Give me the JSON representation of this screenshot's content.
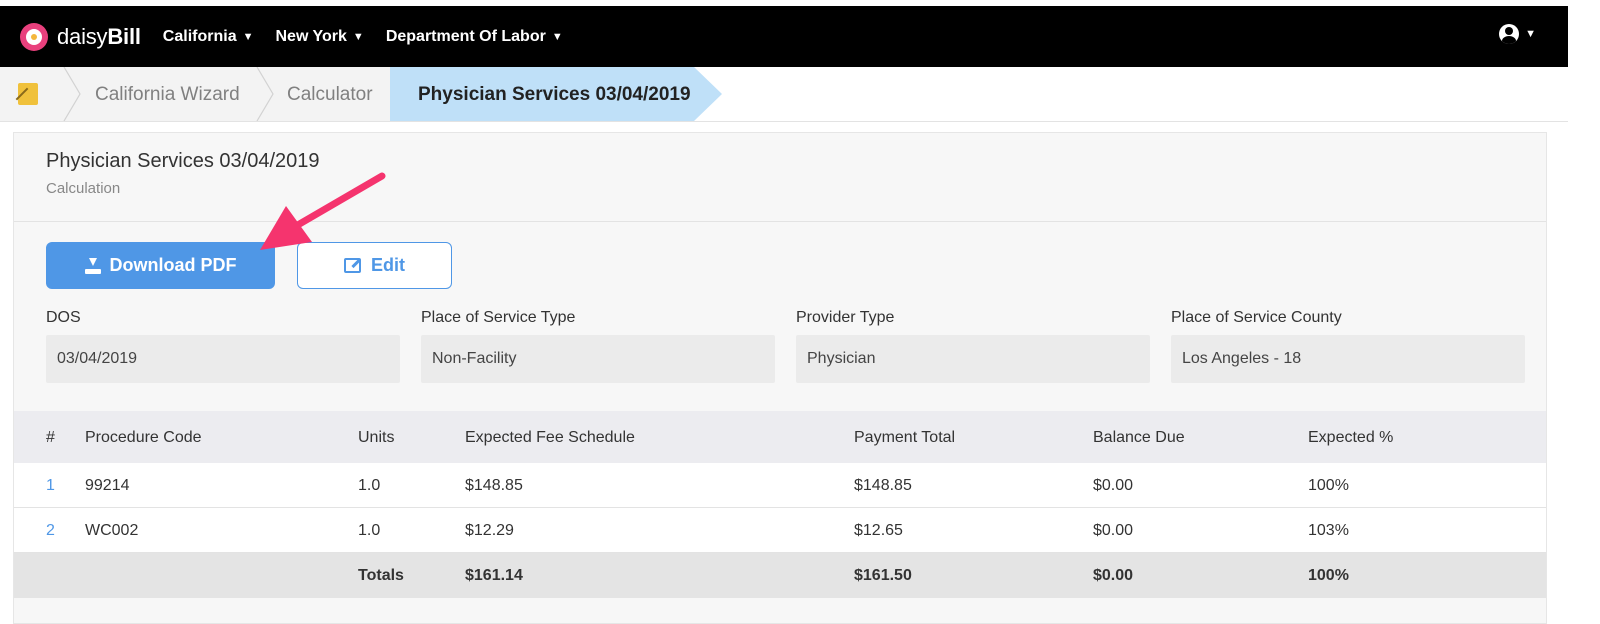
{
  "app": {
    "logo_text_light": "daisy",
    "logo_text_bold": "Bill",
    "brand_color": "#e9407d"
  },
  "nav": {
    "items": [
      {
        "label": "California"
      },
      {
        "label": "New York"
      },
      {
        "label": "Department Of Labor"
      }
    ],
    "user_icon": "user-circle-icon"
  },
  "breadcrumb": {
    "home_icon": "notepad-icon",
    "items": [
      {
        "label": "California Wizard"
      },
      {
        "label": "Calculator"
      },
      {
        "label": "Physician Services 03/04/2019",
        "active": true
      }
    ]
  },
  "card": {
    "title": "Physician Services 03/04/2019",
    "subtitle": "Calculation",
    "buttons": {
      "download_label": "Download PDF",
      "edit_label": "Edit"
    },
    "fields": [
      {
        "label": "DOS",
        "value": "03/04/2019"
      },
      {
        "label": "Place of Service Type",
        "value": "Non-Facility"
      },
      {
        "label": "Provider Type",
        "value": "Physician"
      },
      {
        "label": "Place of Service County",
        "value": "Los Angeles - 18"
      }
    ]
  },
  "table": {
    "headers": [
      "#",
      "Procedure Code",
      "Units",
      "Expected Fee Schedule",
      "Payment Total",
      "Balance Due",
      "Expected %"
    ],
    "rows": [
      {
        "num": "1",
        "code": "99214",
        "units": "1.0",
        "expected": "$148.85",
        "payment": "$148.85",
        "balance": "$0.00",
        "pct": "100%"
      },
      {
        "num": "2",
        "code": "WC002",
        "units": "1.0",
        "expected": "$12.29",
        "payment": "$12.65",
        "balance": "$0.00",
        "pct": "103%"
      }
    ],
    "totals": {
      "label": "Totals",
      "expected": "$161.14",
      "payment": "$161.50",
      "balance": "$0.00",
      "pct": "100%"
    }
  },
  "colors": {
    "accent": "#4f97e6",
    "active_crumb": "#bfe0f8",
    "annotation_arrow": "#f5346e"
  }
}
